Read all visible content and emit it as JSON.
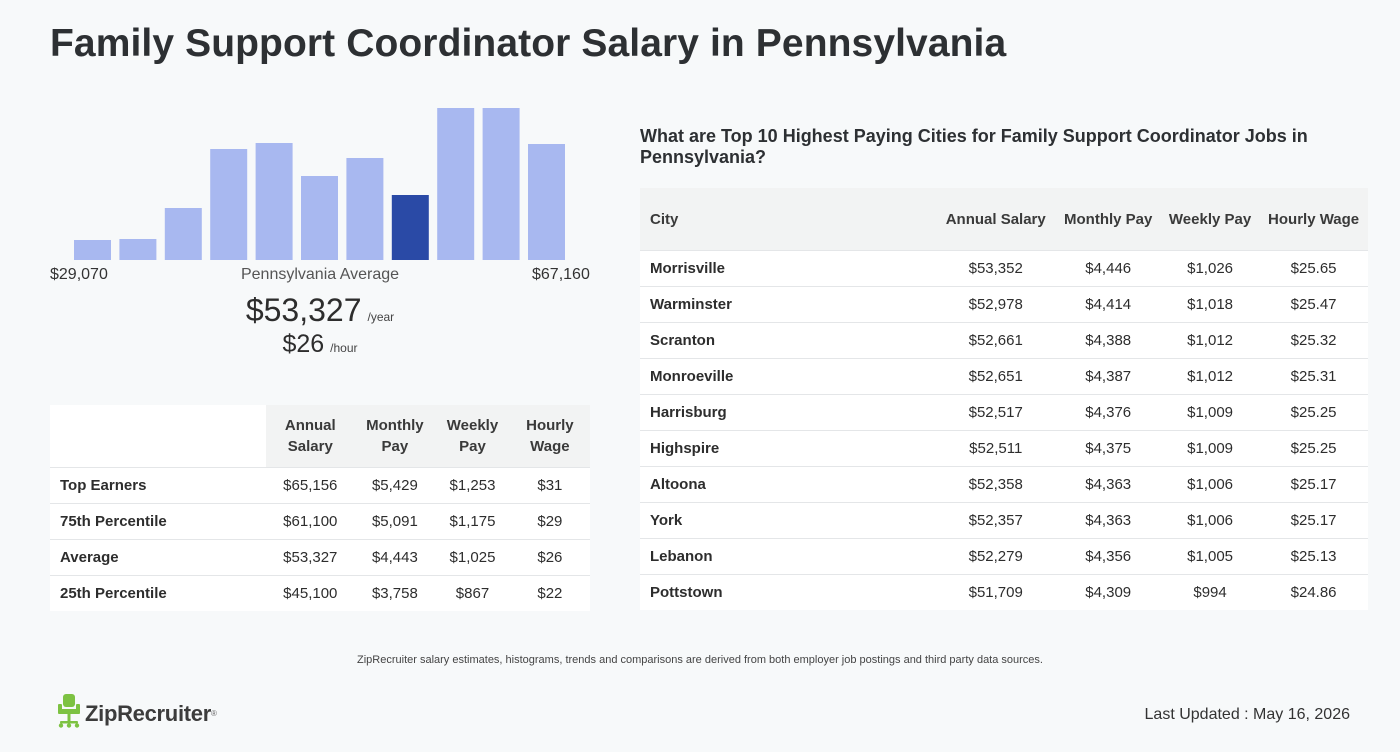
{
  "title": "Family Support Coordinator Salary in Pennsylvania",
  "histogram": {
    "relative_heights": [
      0.13,
      0.14,
      0.34,
      0.73,
      0.77,
      0.55,
      0.67,
      0.43,
      1.0,
      1.0,
      0.76
    ],
    "highlight_index": 7,
    "bar_color": "#a8b8f0",
    "highlight_color": "#2a4aa6",
    "range_min": "$29,070",
    "range_max": "$67,160",
    "average_label": "Pennsylvania Average"
  },
  "average": {
    "annual": "$53,327",
    "annual_unit": "/year",
    "hourly": "$26",
    "hourly_unit": "/hour"
  },
  "percentile_table": {
    "headers": [
      "",
      "Annual Salary",
      "Monthly Pay",
      "Weekly Pay",
      "Hourly Wage"
    ],
    "rows": [
      {
        "label": "Top Earners",
        "annual": "$65,156",
        "monthly": "$5,429",
        "weekly": "$1,253",
        "hourly": "$31"
      },
      {
        "label": "75th Percentile",
        "annual": "$61,100",
        "monthly": "$5,091",
        "weekly": "$1,175",
        "hourly": "$29"
      },
      {
        "label": "Average",
        "annual": "$53,327",
        "monthly": "$4,443",
        "weekly": "$1,025",
        "hourly": "$26"
      },
      {
        "label": "25th Percentile",
        "annual": "$45,100",
        "monthly": "$3,758",
        "weekly": "$867",
        "hourly": "$22"
      }
    ]
  },
  "cities": {
    "heading": "What are Top 10 Highest Paying Cities for Family Support Coordinator Jobs in Pennsylvania?",
    "headers": [
      "City",
      "Annual Salary",
      "Monthly Pay",
      "Weekly Pay",
      "Hourly Wage"
    ],
    "rows": [
      {
        "city": "Morrisville",
        "annual": "$53,352",
        "monthly": "$4,446",
        "weekly": "$1,026",
        "hourly": "$25.65"
      },
      {
        "city": "Warminster",
        "annual": "$52,978",
        "monthly": "$4,414",
        "weekly": "$1,018",
        "hourly": "$25.47"
      },
      {
        "city": "Scranton",
        "annual": "$52,661",
        "monthly": "$4,388",
        "weekly": "$1,012",
        "hourly": "$25.32"
      },
      {
        "city": "Monroeville",
        "annual": "$52,651",
        "monthly": "$4,387",
        "weekly": "$1,012",
        "hourly": "$25.31"
      },
      {
        "city": "Harrisburg",
        "annual": "$52,517",
        "monthly": "$4,376",
        "weekly": "$1,009",
        "hourly": "$25.25"
      },
      {
        "city": "Highspire",
        "annual": "$52,511",
        "monthly": "$4,375",
        "weekly": "$1,009",
        "hourly": "$25.25"
      },
      {
        "city": "Altoona",
        "annual": "$52,358",
        "monthly": "$4,363",
        "weekly": "$1,006",
        "hourly": "$25.17"
      },
      {
        "city": "York",
        "annual": "$52,357",
        "monthly": "$4,363",
        "weekly": "$1,006",
        "hourly": "$25.17"
      },
      {
        "city": "Lebanon",
        "annual": "$52,279",
        "monthly": "$4,356",
        "weekly": "$1,005",
        "hourly": "$25.13"
      },
      {
        "city": "Pottstown",
        "annual": "$51,709",
        "monthly": "$4,309",
        "weekly": "$994",
        "hourly": "$24.86"
      }
    ]
  },
  "footer": {
    "disclaimer": "ZipRecruiter salary estimates, histograms, trends and comparisons are derived from both employer job postings and third party data sources.",
    "logo_text": "ZipRecruiter",
    "logo_icon": "ziprecruiter-chair-icon",
    "logo_color": "#7dc242",
    "last_updated": "Last Updated : May 16, 2026"
  }
}
